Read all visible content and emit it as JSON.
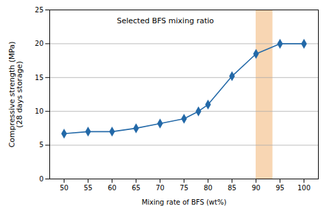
{
  "chart_data": {
    "type": "line",
    "x": [
      50,
      55,
      60,
      65,
      70,
      75,
      78,
      80,
      85,
      90,
      95,
      100
    ],
    "values": [
      6.7,
      7.0,
      7.0,
      7.5,
      8.2,
      8.9,
      10.0,
      11.0,
      15.2,
      18.5,
      20.0,
      20.0
    ],
    "color": "#2369a8",
    "marker": "diamond",
    "highlight": {
      "xmin": 90,
      "xmax": 93.5,
      "color": "#f5c89a"
    },
    "annotations": [
      {
        "text": "Selected BFS mixing ratio",
        "x": 61,
        "y": 23.8
      }
    ],
    "xlabel": "Mixing rate of BFS (wt%)",
    "ylabel": "Compressive strength (MPa)\n(28 days storage)",
    "xlim": [
      47,
      103
    ],
    "ylim": [
      0,
      25
    ],
    "xticks": [
      50,
      55,
      60,
      65,
      70,
      75,
      80,
      85,
      90,
      95,
      100
    ],
    "yticks": [
      0,
      5,
      10,
      15,
      20,
      25
    ],
    "grid": "y"
  }
}
